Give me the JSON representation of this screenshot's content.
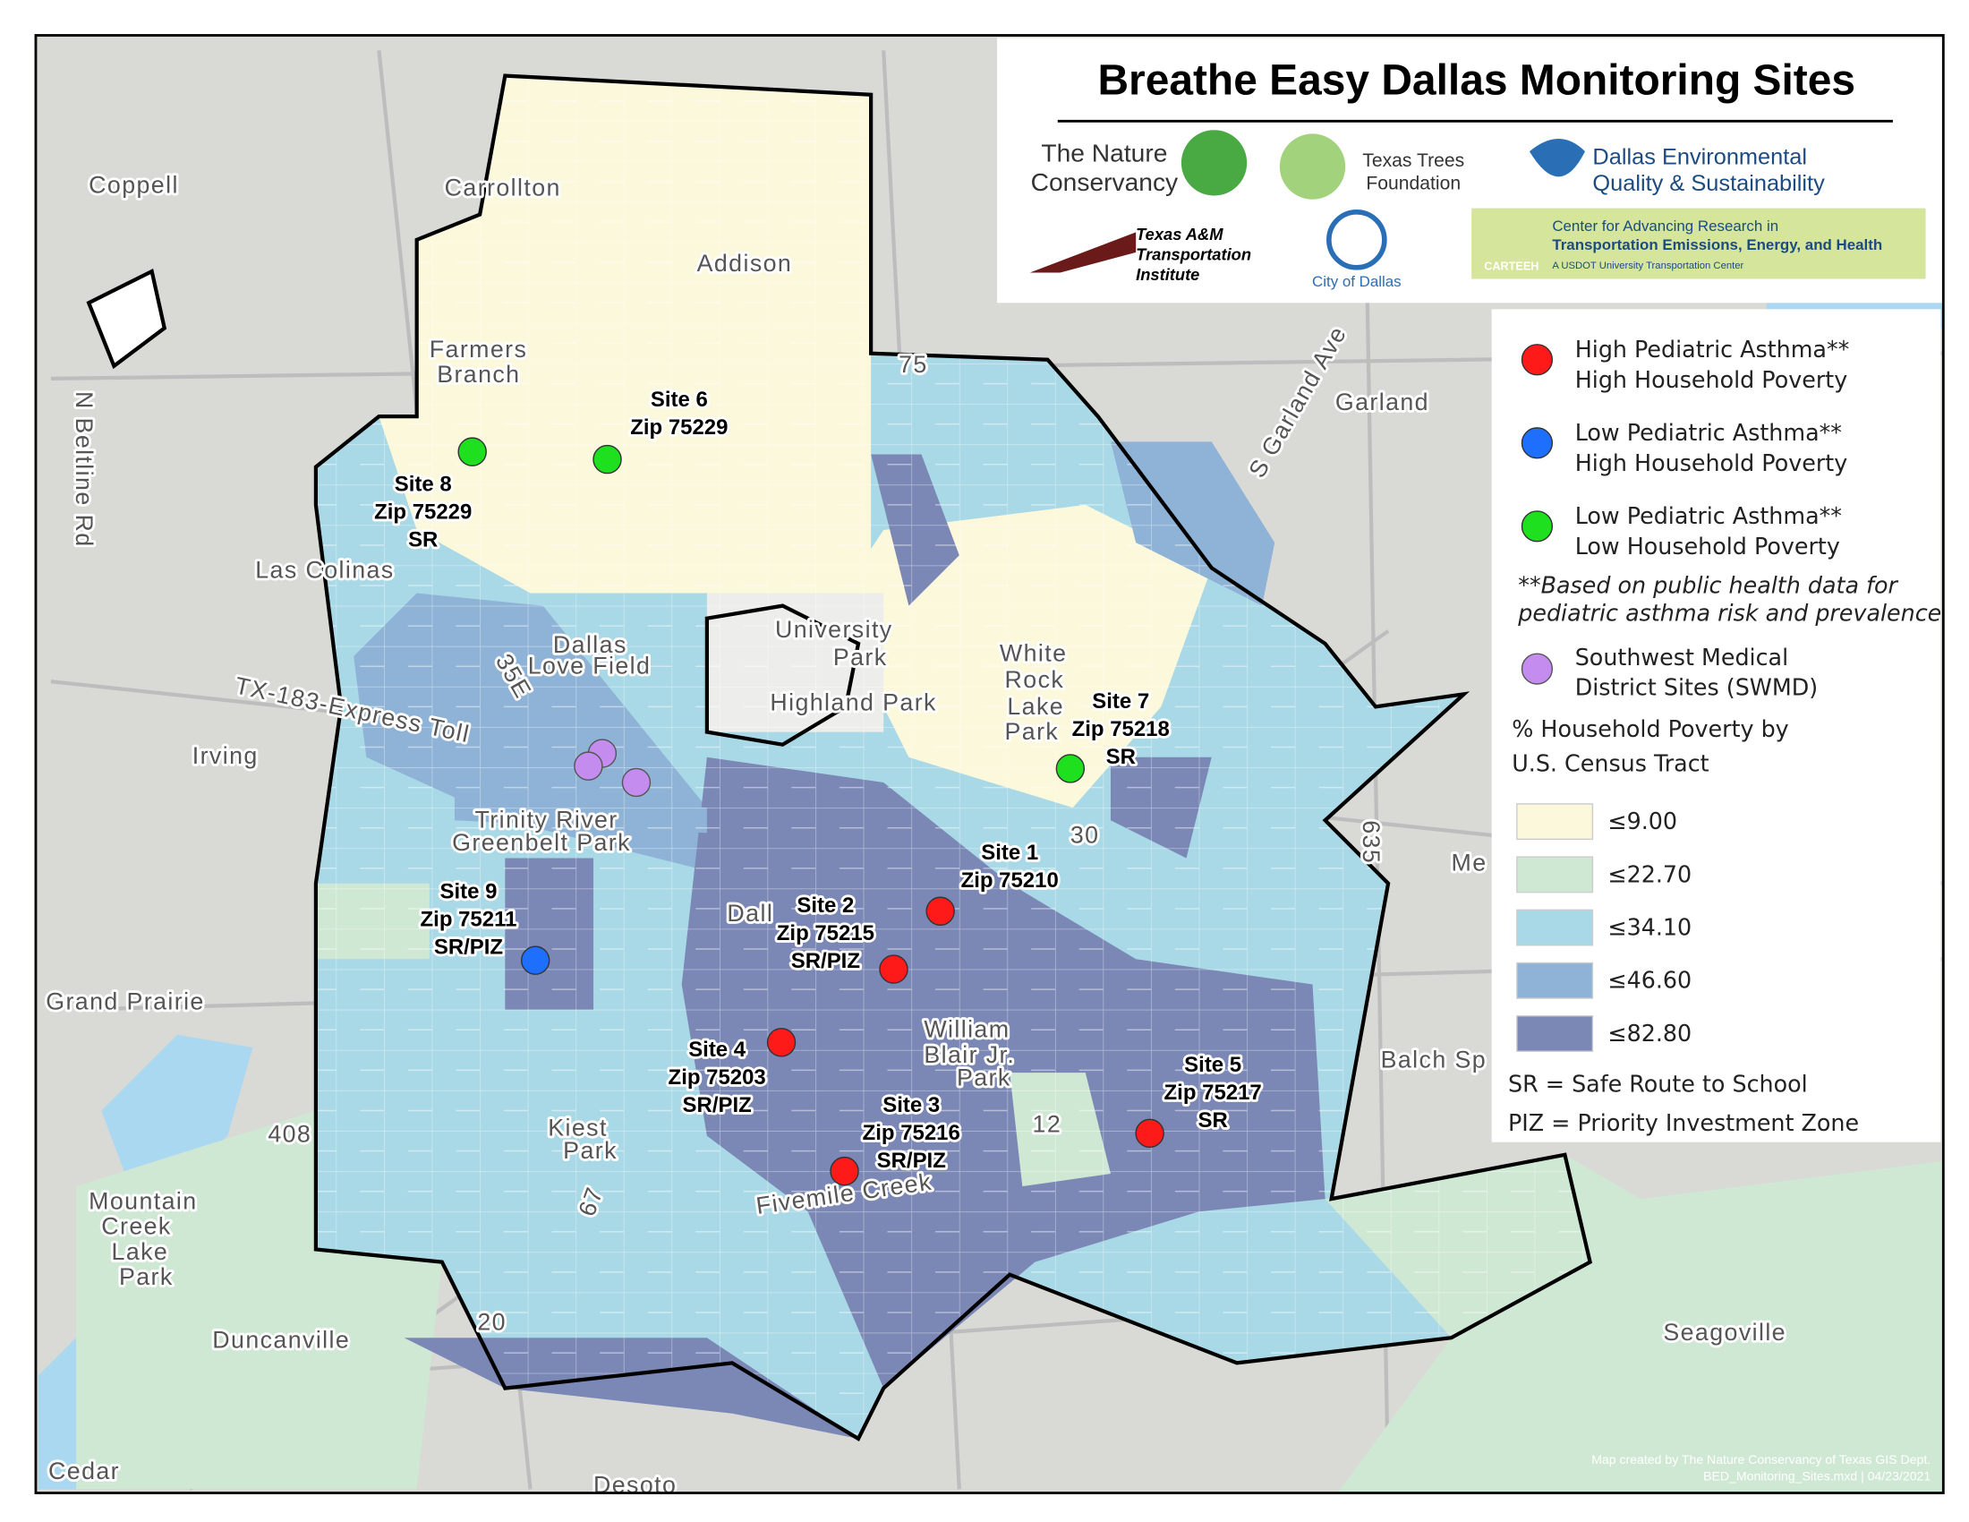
{
  "title": "Breathe Easy Dallas Monitoring Sites",
  "partners": [
    {
      "lines": [
        "The Nature",
        "Conservancy"
      ]
    },
    {
      "lines": [
        "Texas Trees",
        "Foundation"
      ]
    },
    {
      "lines": [
        "Dallas Environmental",
        "Quality & Sustainability"
      ]
    },
    {
      "lines": [
        "Texas A&M",
        "Transportation",
        "Institute"
      ]
    },
    {
      "lines": [
        "City of Dallas"
      ]
    },
    {
      "lines": [
        "Center for Advancing Research in",
        "Transportation Emissions, Energy, and Health",
        "A USDOT University Transportation Center",
        "CARTEEH"
      ]
    }
  ],
  "legend": {
    "site_types": [
      {
        "lines": [
          "High Pediatric Asthma**",
          "High Household Poverty"
        ],
        "color": "#ff1a1a"
      },
      {
        "lines": [
          "Low Pediatric Asthma**",
          "High Household Poverty"
        ],
        "color": "#1f6fff"
      },
      {
        "lines": [
          "Low Pediatric Asthma**",
          "Low Household Poverty"
        ],
        "color": "#1fe01f"
      }
    ],
    "footnote": [
      "**Based on public health data for",
      "pediatric asthma risk and prevalence"
    ],
    "swmd": {
      "lines": [
        "Southwest Medical",
        "District Sites (SWMD)"
      ],
      "color": "#c58cf0"
    },
    "poverty_title": [
      "% Household Poverty by",
      "U.S. Census Tract"
    ],
    "classes": [
      {
        "label": "≤9.00",
        "color": "#fbf8dc"
      },
      {
        "label": "≤22.70",
        "color": "#cfe8d4"
      },
      {
        "label": "≤34.10",
        "color": "#a9d8e6"
      },
      {
        "label": "≤46.60",
        "color": "#8fb3d6"
      },
      {
        "label": "≤82.80",
        "color": "#7b87b5"
      }
    ],
    "abbreviations": [
      "SR = Safe Route to School",
      "PIZ = Priority Investment Zone"
    ]
  },
  "sites": [
    {
      "lines": [
        "Site 1",
        "Zip 75210"
      ],
      "color": "#ff1a1a"
    },
    {
      "lines": [
        "Site 2",
        "Zip 75215",
        "SR/PIZ"
      ],
      "color": "#ff1a1a"
    },
    {
      "lines": [
        "Site 3",
        "Zip 75216",
        "SR/PIZ"
      ],
      "color": "#ff1a1a"
    },
    {
      "lines": [
        "Site 4",
        "Zip 75203",
        "SR/PIZ"
      ],
      "color": "#ff1a1a"
    },
    {
      "lines": [
        "Site 5",
        "Zip 75217",
        "SR"
      ],
      "color": "#ff1a1a"
    },
    {
      "lines": [
        "Site 6",
        "Zip 75229"
      ],
      "color": "#1fe01f"
    },
    {
      "lines": [
        "Site 7",
        "Zip 75218",
        "SR"
      ],
      "color": "#1fe01f"
    },
    {
      "lines": [
        "Site 8",
        "Zip 75229",
        "SR"
      ],
      "color": "#1fe01f"
    },
    {
      "lines": [
        "Site 9",
        "Zip 75211",
        "SR/PIZ"
      ],
      "color": "#1f6fff"
    }
  ],
  "places": [
    "Coppell",
    "Carrollton",
    "Addison",
    "Farmers",
    "Branch",
    "Garland",
    "Las Colinas",
    "University",
    "Park",
    "Highland Park",
    "Dallas",
    "Love Field",
    "Irving",
    "TX-183-Express Toll",
    "Trinity River",
    "Greenbelt Park",
    "White",
    "Rock",
    "Lake",
    "Park",
    "Grand Prairie",
    "William",
    "Blair Jr.",
    "Park",
    "Kiest",
    "Park",
    "Mountain",
    "Creek",
    "Lake",
    "Park",
    "Duncanville",
    "Seagoville",
    "Balch Sp",
    "Desoto",
    "Cedar",
    "Me",
    "Fivemile Creek",
    "N Beltline Rd",
    "S Garland Ave",
    "635",
    "35E",
    "75",
    "30",
    "12",
    "20",
    "408",
    "67",
    "Dall"
  ],
  "credits": [
    "Map created by The Nature Conservancy of Texas GIS Dept.",
    "BED_Monitoring_Sites.mxd | 04/23/2021"
  ]
}
